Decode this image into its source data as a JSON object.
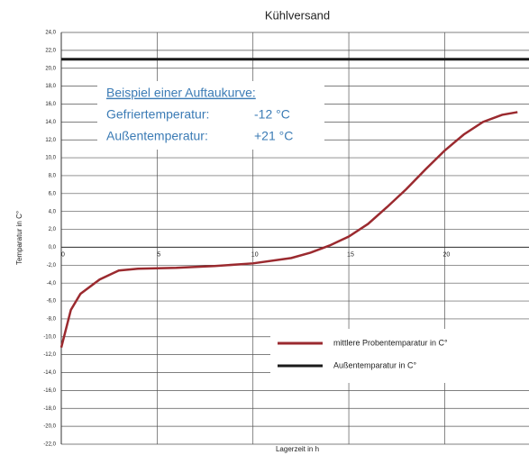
{
  "chart_data": {
    "type": "line",
    "title": "Kühlversand",
    "xlabel": "Lagerzeit in h",
    "ylabel": "Temparatur in C°",
    "xlim": [
      0,
      24.4
    ],
    "xticks": [
      0,
      5,
      10,
      15,
      20
    ],
    "ylim": [
      -22,
      24
    ],
    "yticks": [
      {
        "value": -22,
        "label": "-22,0"
      },
      {
        "value": -20,
        "label": "-20,0"
      },
      {
        "value": -18,
        "label": "-18,0"
      },
      {
        "value": -16,
        "label": "-16,0"
      },
      {
        "value": -14,
        "label": "-14,0"
      },
      {
        "value": -12,
        "label": "-12,0"
      },
      {
        "value": -10,
        "label": "-10,0"
      },
      {
        "value": -8,
        "label": "-8,0"
      },
      {
        "value": -6,
        "label": "-6,0"
      },
      {
        "value": -4,
        "label": "-4,0"
      },
      {
        "value": -2,
        "label": "-2,0"
      },
      {
        "value": 0,
        "label": "0,0"
      },
      {
        "value": 2,
        "label": "2,0"
      },
      {
        "value": 4,
        "label": "4,0"
      },
      {
        "value": 6,
        "label": "6,0"
      },
      {
        "value": 8,
        "label": "8,0"
      },
      {
        "value": 10,
        "label": "10,0"
      },
      {
        "value": 12,
        "label": "12,0"
      },
      {
        "value": 14,
        "label": "14,0"
      },
      {
        "value": 16,
        "label": "16,0"
      },
      {
        "value": 18,
        "label": "18,0"
      },
      {
        "value": 20,
        "label": "20,0"
      },
      {
        "value": 22,
        "label": "22,0"
      },
      {
        "value": 24,
        "label": "24,0"
      }
    ],
    "grid": true,
    "legend": "lower right",
    "series": [
      {
        "name": "mittlere Probentemparatur in C°",
        "color": "#9b2a2f",
        "x": [
          0,
          0.5,
          1,
          2,
          3,
          4,
          6,
          8,
          10,
          12,
          13,
          14,
          15,
          16,
          17,
          18,
          19,
          20,
          21,
          22,
          23,
          23.8
        ],
        "values": [
          -11.2,
          -7,
          -5.2,
          -3.6,
          -2.6,
          -2.4,
          -2.3,
          -2.1,
          -1.8,
          -1.2,
          -0.6,
          0.2,
          1.2,
          2.6,
          4.5,
          6.5,
          8.7,
          10.8,
          12.6,
          14,
          14.8,
          15.1
        ]
      },
      {
        "name": "Außentemparatur in C°",
        "color": "#1a1a1a",
        "x": [
          0,
          24.4
        ],
        "values": [
          21,
          21
        ]
      }
    ],
    "annotation": {
      "heading": "Beispiel einer Auftaukurve:",
      "rows": [
        [
          "Gefriertemperatur:",
          "-12 °C"
        ],
        [
          "Außentemperatur:",
          "+21 °C"
        ]
      ]
    }
  }
}
